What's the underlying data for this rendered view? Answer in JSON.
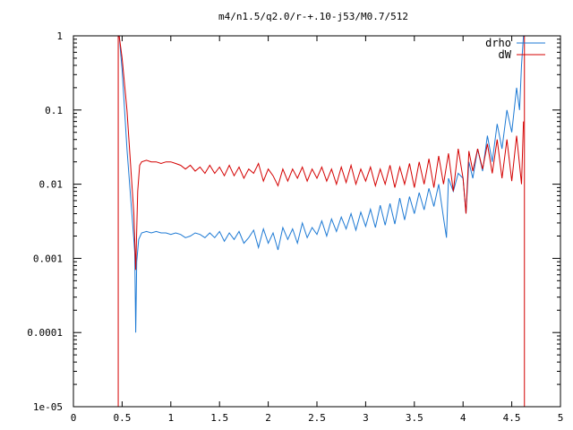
{
  "chart_data": {
    "type": "line",
    "title": "m4/n1.5/q2.0/r-+.10-j53/M0.7/512",
    "xlim": [
      0,
      5
    ],
    "ylim": [
      1e-05,
      1
    ],
    "yscale": "log",
    "grid": false,
    "legend_position": "top-right",
    "x_ticks": [
      "0",
      "0.5",
      "1",
      "1.5",
      "2",
      "2.5",
      "3",
      "3.5",
      "4",
      "4.5",
      "5"
    ],
    "y_ticks": [
      "1",
      "0.1",
      "0.01",
      "0.001",
      "0.0001",
      "1e-05"
    ],
    "vertical_lines": [
      0.46,
      4.63
    ],
    "series": [
      {
        "name": "drho",
        "color": "#1e7ad4",
        "x": [
          0.47,
          0.5,
          0.55,
          0.6,
          0.62,
          0.63,
          0.64,
          0.65,
          0.67,
          0.7,
          0.75,
          0.8,
          0.85,
          0.9,
          0.95,
          1.0,
          1.05,
          1.1,
          1.15,
          1.2,
          1.25,
          1.3,
          1.35,
          1.4,
          1.45,
          1.5,
          1.55,
          1.6,
          1.65,
          1.7,
          1.75,
          1.8,
          1.85,
          1.9,
          1.95,
          2.0,
          2.05,
          2.1,
          2.15,
          2.2,
          2.25,
          2.3,
          2.35,
          2.4,
          2.45,
          2.5,
          2.55,
          2.6,
          2.65,
          2.7,
          2.75,
          2.8,
          2.85,
          2.9,
          2.95,
          3.0,
          3.05,
          3.1,
          3.15,
          3.2,
          3.25,
          3.3,
          3.35,
          3.4,
          3.45,
          3.5,
          3.55,
          3.6,
          3.65,
          3.7,
          3.75,
          3.8,
          3.83,
          3.85,
          3.9,
          3.95,
          4.0,
          4.03,
          4.06,
          4.1,
          4.15,
          4.2,
          4.25,
          4.3,
          4.35,
          4.4,
          4.45,
          4.5,
          4.55,
          4.58,
          4.6,
          4.62
        ],
        "y": [
          1.0,
          0.35,
          0.03,
          0.004,
          0.0018,
          0.0012,
          0.0001,
          0.0009,
          0.0018,
          0.0022,
          0.0023,
          0.0022,
          0.0023,
          0.0022,
          0.0022,
          0.0021,
          0.0022,
          0.0021,
          0.0019,
          0.002,
          0.0022,
          0.0021,
          0.0019,
          0.0022,
          0.0019,
          0.0023,
          0.0017,
          0.0022,
          0.0018,
          0.0023,
          0.0016,
          0.0019,
          0.0024,
          0.0014,
          0.0025,
          0.0016,
          0.0022,
          0.0013,
          0.0026,
          0.0018,
          0.0025,
          0.0016,
          0.003,
          0.0019,
          0.0026,
          0.0021,
          0.0032,
          0.002,
          0.0034,
          0.0023,
          0.0036,
          0.0025,
          0.004,
          0.0024,
          0.0042,
          0.0027,
          0.0046,
          0.0026,
          0.0052,
          0.0028,
          0.0055,
          0.0029,
          0.0065,
          0.0033,
          0.0068,
          0.004,
          0.0077,
          0.0045,
          0.0088,
          0.005,
          0.01,
          0.0035,
          0.0019,
          0.012,
          0.008,
          0.014,
          0.012,
          0.004,
          0.02,
          0.012,
          0.03,
          0.015,
          0.045,
          0.02,
          0.065,
          0.03,
          0.1,
          0.05,
          0.2,
          0.1,
          0.4,
          1.0
        ]
      },
      {
        "name": "dW",
        "color": "#d40000",
        "x": [
          0.47,
          0.5,
          0.55,
          0.6,
          0.62,
          0.64,
          0.66,
          0.68,
          0.7,
          0.75,
          0.8,
          0.85,
          0.9,
          0.95,
          1.0,
          1.05,
          1.1,
          1.15,
          1.2,
          1.25,
          1.3,
          1.35,
          1.4,
          1.45,
          1.5,
          1.55,
          1.6,
          1.65,
          1.7,
          1.75,
          1.8,
          1.85,
          1.9,
          1.95,
          2.0,
          2.05,
          2.1,
          2.15,
          2.2,
          2.25,
          2.3,
          2.35,
          2.4,
          2.45,
          2.5,
          2.55,
          2.6,
          2.65,
          2.7,
          2.75,
          2.8,
          2.85,
          2.9,
          2.95,
          3.0,
          3.05,
          3.1,
          3.15,
          3.2,
          3.25,
          3.3,
          3.35,
          3.4,
          3.45,
          3.5,
          3.55,
          3.6,
          3.65,
          3.7,
          3.75,
          3.8,
          3.85,
          3.9,
          3.95,
          4.0,
          4.03,
          4.06,
          4.1,
          4.15,
          4.2,
          4.25,
          4.3,
          4.35,
          4.4,
          4.45,
          4.5,
          4.55,
          4.6,
          4.62
        ],
        "y": [
          1.0,
          0.5,
          0.1,
          0.01,
          0.004,
          0.0007,
          0.008,
          0.018,
          0.02,
          0.021,
          0.02,
          0.02,
          0.019,
          0.02,
          0.02,
          0.019,
          0.018,
          0.016,
          0.018,
          0.015,
          0.017,
          0.014,
          0.018,
          0.014,
          0.017,
          0.013,
          0.018,
          0.013,
          0.017,
          0.012,
          0.016,
          0.014,
          0.019,
          0.011,
          0.016,
          0.013,
          0.0095,
          0.016,
          0.011,
          0.016,
          0.012,
          0.017,
          0.011,
          0.016,
          0.012,
          0.017,
          0.011,
          0.016,
          0.01,
          0.017,
          0.0105,
          0.018,
          0.01,
          0.016,
          0.011,
          0.017,
          0.0095,
          0.016,
          0.01,
          0.018,
          0.009,
          0.017,
          0.01,
          0.019,
          0.009,
          0.02,
          0.01,
          0.022,
          0.009,
          0.024,
          0.01,
          0.026,
          0.008,
          0.03,
          0.012,
          0.004,
          0.028,
          0.015,
          0.03,
          0.016,
          0.035,
          0.014,
          0.04,
          0.012,
          0.04,
          0.011,
          0.045,
          0.01,
          0.07
        ]
      }
    ]
  }
}
